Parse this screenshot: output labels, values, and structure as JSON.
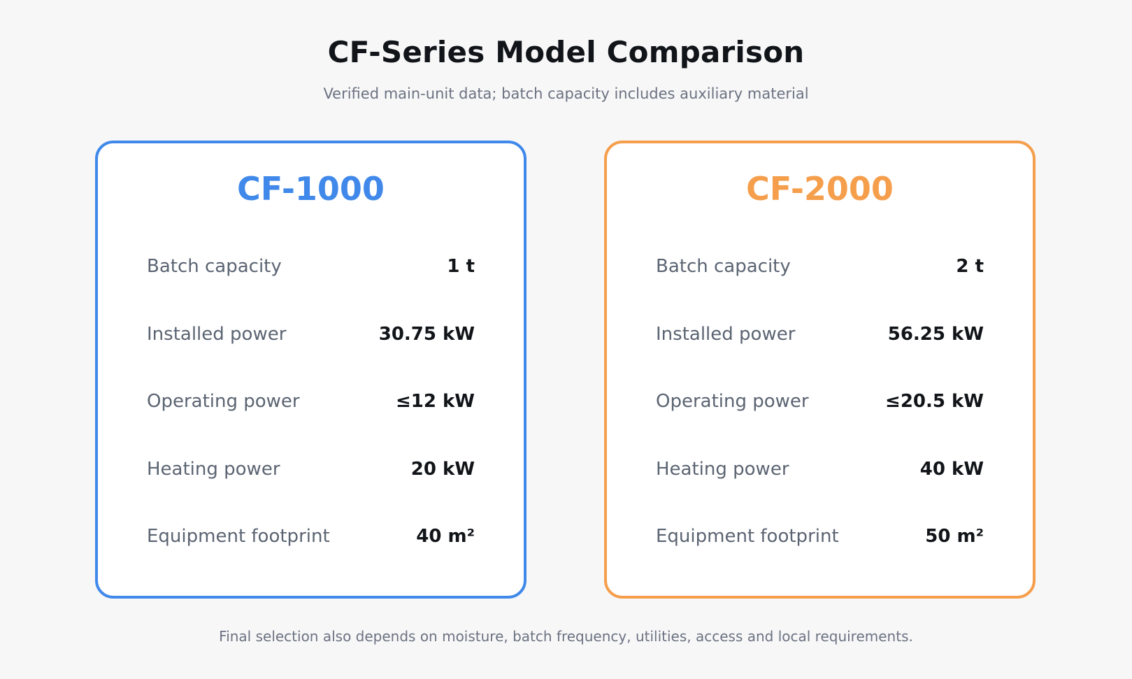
{
  "header": {
    "title": "CF-Series Model Comparison",
    "subtitle": "Verified main-unit data; batch capacity includes auxiliary material"
  },
  "colors": {
    "cf1000_accent": "#4089ea",
    "cf2000_accent": "#f59e4c"
  },
  "models": [
    {
      "name": "CF-1000",
      "specs": [
        {
          "label": "Batch capacity",
          "value": "1 t"
        },
        {
          "label": "Installed power",
          "value": "30.75 kW"
        },
        {
          "label": "Operating power",
          "value": "≤12 kW"
        },
        {
          "label": "Heating power",
          "value": "20 kW"
        },
        {
          "label": "Equipment footprint",
          "value": "40 m²"
        }
      ]
    },
    {
      "name": "CF-2000",
      "specs": [
        {
          "label": "Batch capacity",
          "value": "2 t"
        },
        {
          "label": "Installed power",
          "value": "56.25 kW"
        },
        {
          "label": "Operating power",
          "value": "≤20.5 kW"
        },
        {
          "label": "Heating power",
          "value": "40 kW"
        },
        {
          "label": "Equipment footprint",
          "value": "50 m²"
        }
      ]
    }
  ],
  "footer": {
    "note": "Final selection also depends on moisture, batch frequency, utilities, access and local requirements."
  }
}
